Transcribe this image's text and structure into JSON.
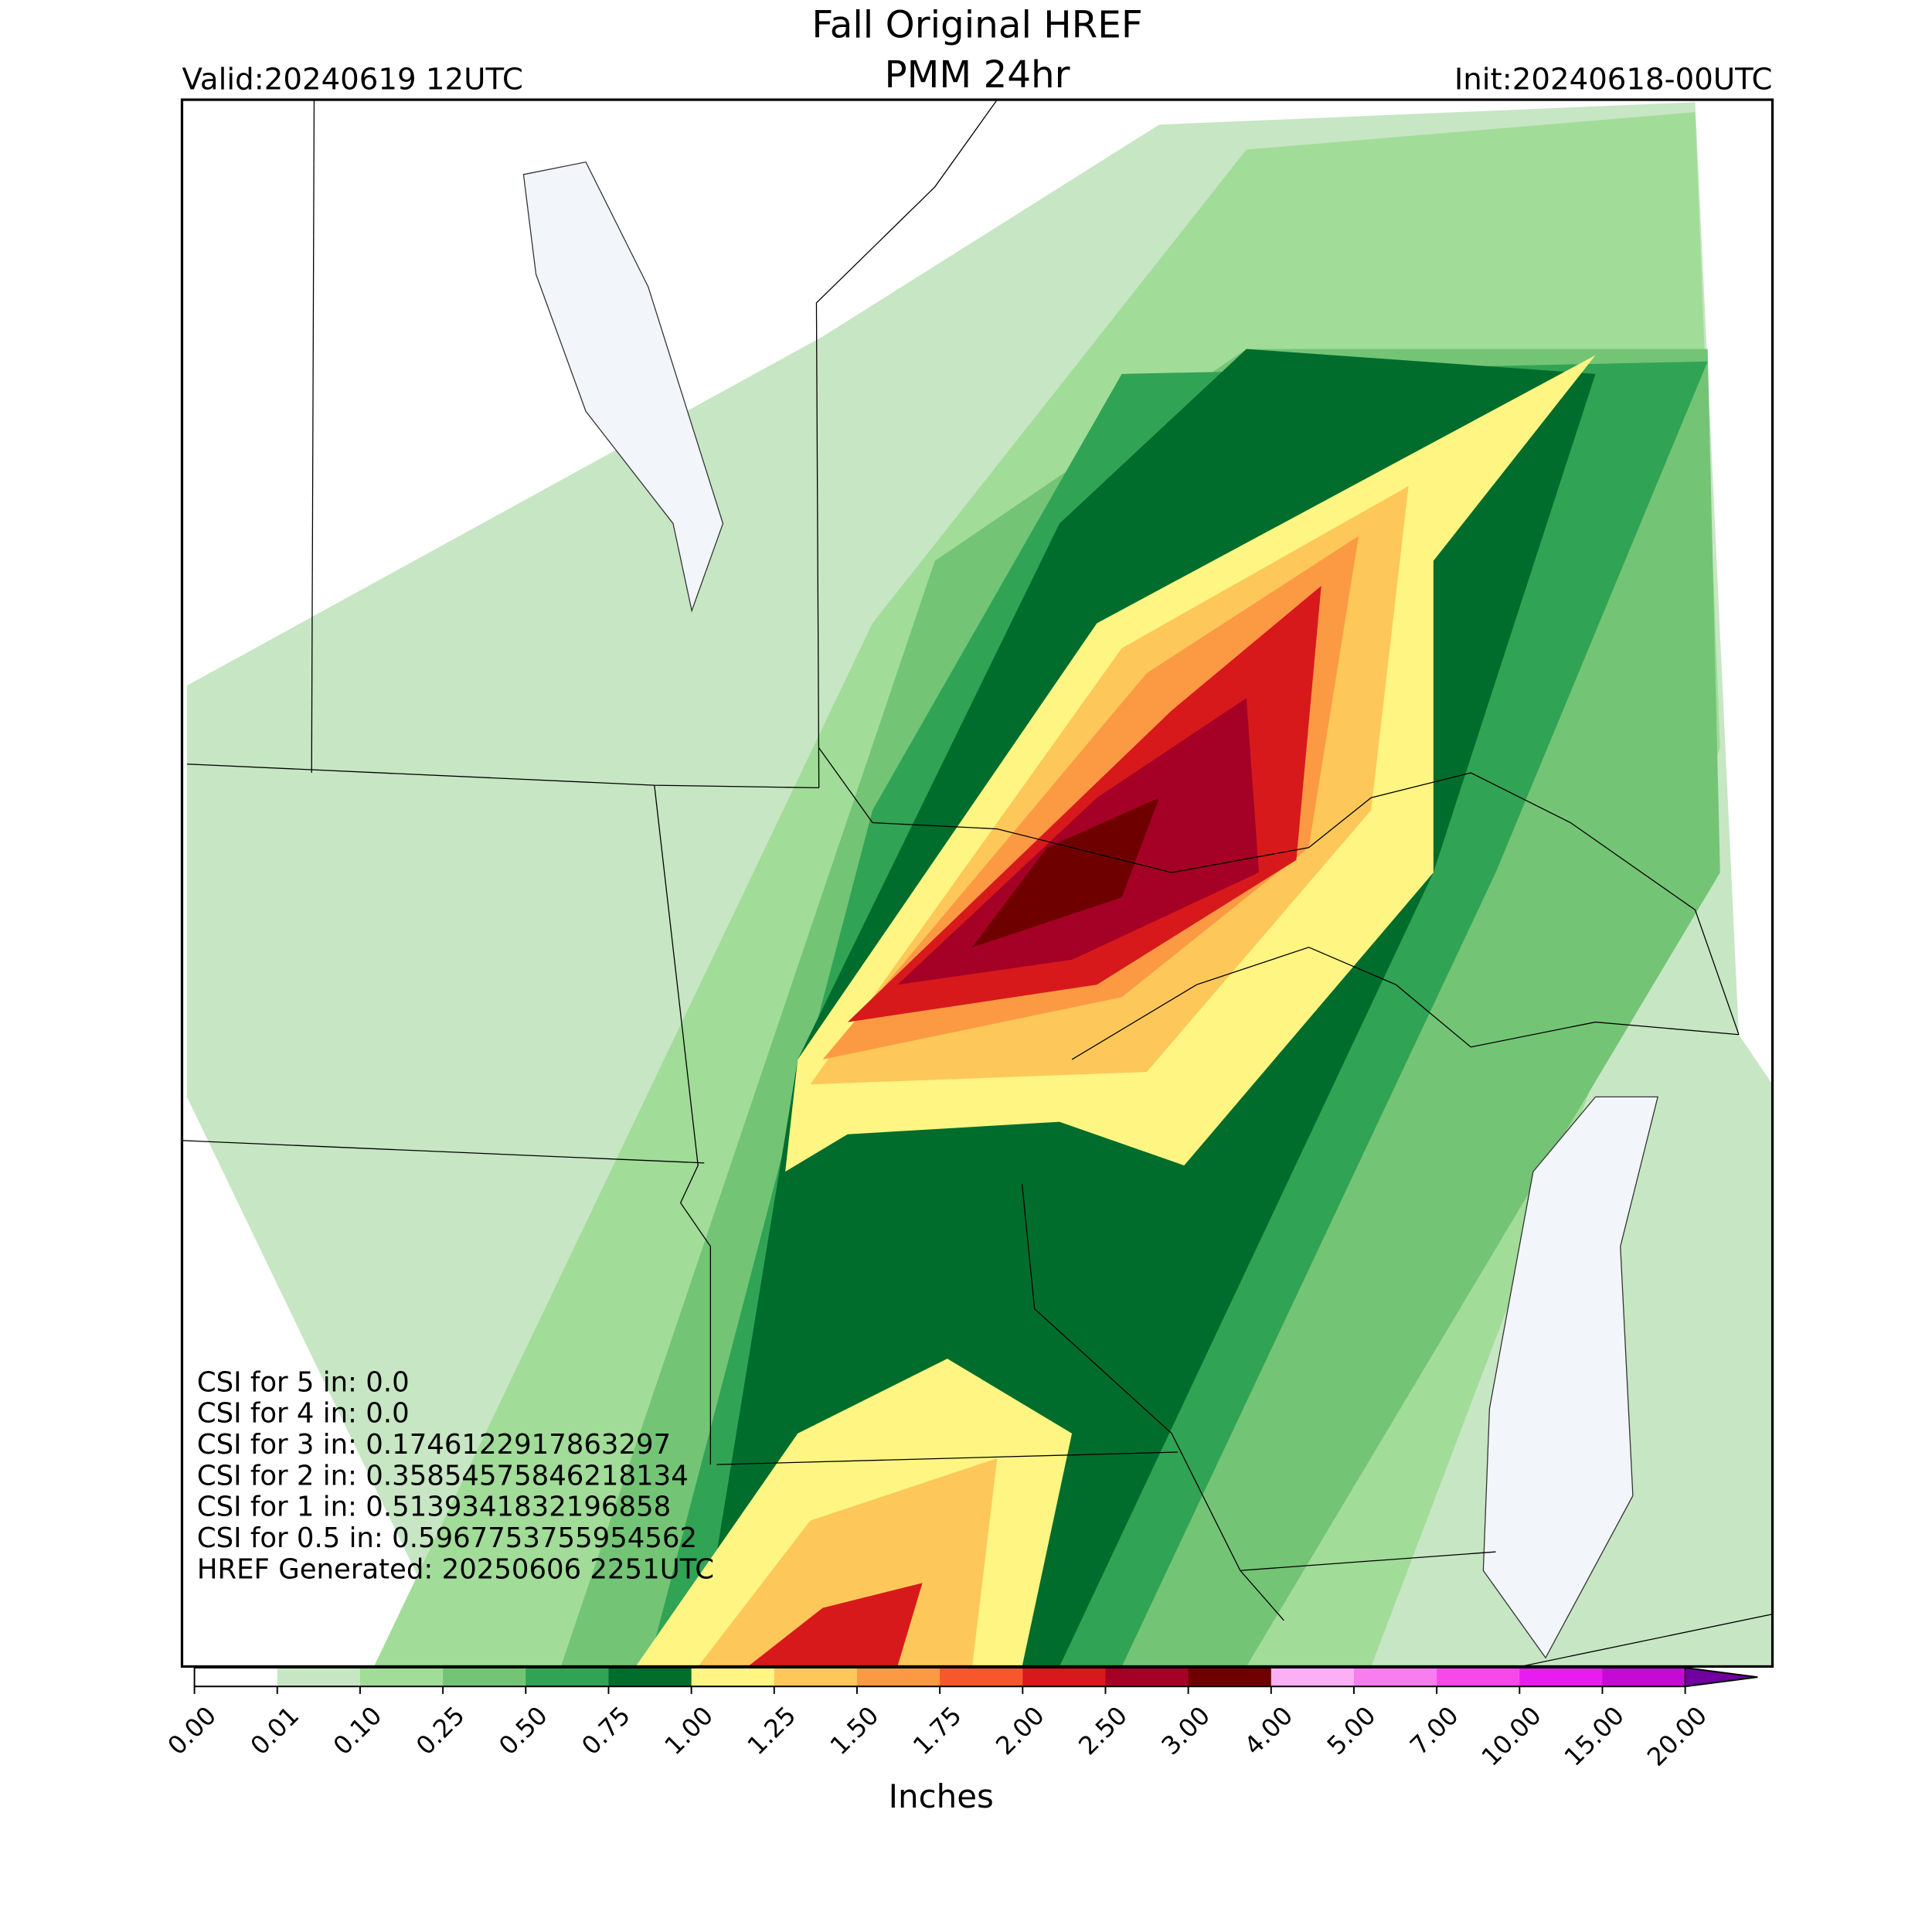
{
  "header": {
    "title": [
      "Fall Original HREF",
      "PMM 24hr"
    ],
    "valid": "Valid:20240619 12UTC",
    "init": "Init:20240618-00UTC"
  },
  "annotations": [
    "CSI for 5 in: 0.0",
    "CSI for 4 in: 0.0",
    "CSI for 3 in: 0.1746122917863297",
    "CSI for 2 in: 0.35854575846218134",
    "CSI for 1 in: 0.5139341832196858",
    "CSI for 0.5 in: 0.5967753755954562",
    "HREF Generated: 20250606 2251UTC"
  ],
  "colorbar": {
    "label": "Inches",
    "ticks": [
      {
        "value": 0,
        "label": "0.00"
      },
      {
        "value": 0.01,
        "label": "0.01"
      },
      {
        "value": 0.1,
        "label": "0.10"
      },
      {
        "value": 0.25,
        "label": "0.25"
      },
      {
        "value": 0.5,
        "label": "0.50"
      },
      {
        "value": 0.75,
        "label": "0.75"
      },
      {
        "value": 1,
        "label": "1.00"
      },
      {
        "value": 1.25,
        "label": "1.25"
      },
      {
        "value": 1.5,
        "label": "1.50"
      },
      {
        "value": 1.75,
        "label": "1.75"
      },
      {
        "value": 2,
        "label": "2.00"
      },
      {
        "value": 2.5,
        "label": "2.50"
      },
      {
        "value": 3,
        "label": "3.00"
      },
      {
        "value": 4,
        "label": "4.00"
      },
      {
        "value": 5,
        "label": "5.00"
      },
      {
        "value": 7,
        "label": "7.00"
      },
      {
        "value": 10,
        "label": "10.00"
      },
      {
        "value": 15,
        "label": "15.00"
      },
      {
        "value": 20,
        "label": "20.00"
      }
    ],
    "colors": [
      "#ffffff",
      "#c7e6c4",
      "#a1dc98",
      "#74c476",
      "#31a354",
      "#006d2c",
      "#fef583",
      "#fdc859",
      "#fc9a44",
      "#f8562b",
      "#d8191c",
      "#a50026",
      "#6f0000",
      "#fbb0f5",
      "#f87ef0",
      "#f848ea",
      "#e81cf0",
      "#c50ad4",
      "#9000c8"
    ],
    "extend_color": "#7000a0"
  }
}
